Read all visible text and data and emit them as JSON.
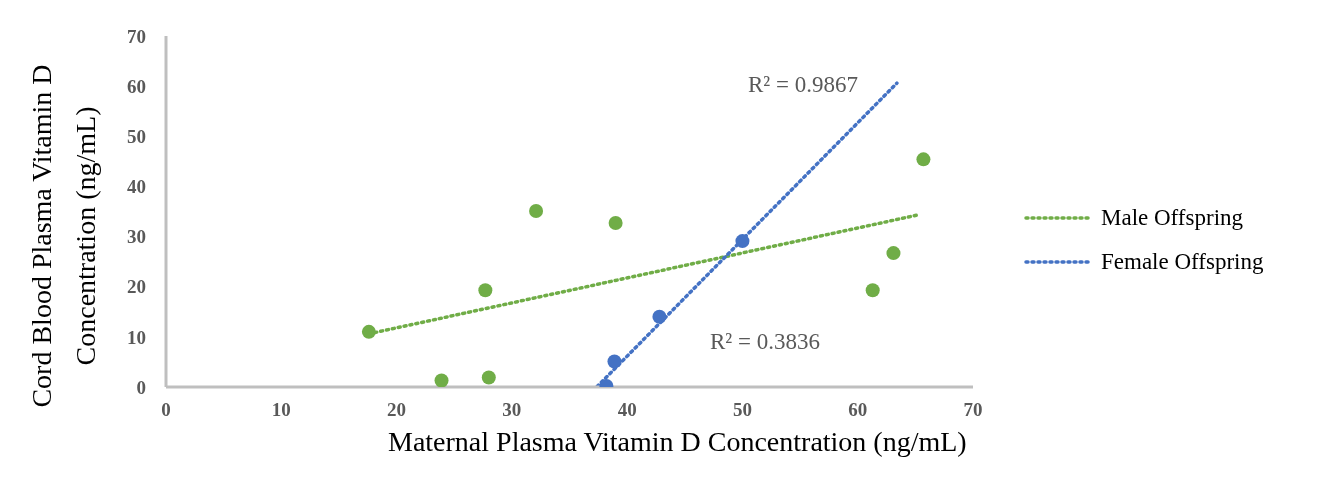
{
  "chart_data": {
    "type": "scatter",
    "xlabel": "Maternal Plasma Vitamin D Concentration (ng/mL)",
    "ylabel": "Cord Blood Plasma Vitamin D Concentration (ng/mL)",
    "xlim": [
      0,
      70
    ],
    "xticks": [
      0,
      10,
      20,
      30,
      40,
      50,
      60,
      70
    ],
    "ylim": [
      0,
      70
    ],
    "yticks": [
      0,
      10,
      20,
      30,
      40,
      50,
      60,
      70
    ],
    "grid": false,
    "legend": "right",
    "marker": "circle",
    "series": [
      {
        "color": "#70ad47",
        "x": [
          17.6,
          23.9,
          28.0,
          27.7,
          32.1,
          39.0,
          61.3,
          63.1,
          65.7
        ],
        "values": [
          11.0,
          1.3,
          1.9,
          19.3,
          35.1,
          32.7,
          19.3,
          26.7,
          45.4
        ]
      },
      {
        "color": "#4472c4",
        "x": [
          38.2,
          38.9,
          42.8,
          50.0
        ],
        "values": [
          0.2,
          5.1,
          14.0,
          29.1
        ]
      },
      {
        "type": "line",
        "name": "Male Offspring",
        "color": "#70ad47",
        "line_style": "dotted",
        "marker": "none",
        "x": [
          17.6,
          65.2
        ],
        "values": [
          10.6,
          34.3
        ]
      },
      {
        "type": "line",
        "name": "Female Offspring",
        "color": "#4472c4",
        "line_style": "dotted",
        "marker": "none",
        "x": [
          37.4,
          63.4
        ],
        "values": [
          0.1,
          60.6
        ]
      }
    ],
    "annotations": [
      "R² = 0.9867",
      "R² = 0.3836"
    ]
  }
}
